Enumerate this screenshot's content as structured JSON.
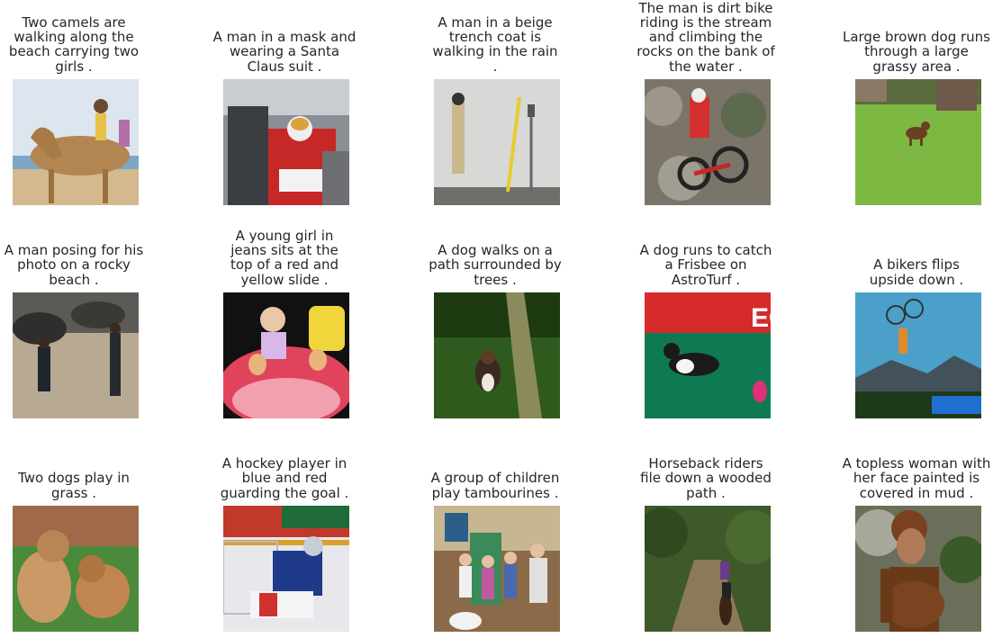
{
  "captions": [
    "Two camels are\nwalking along the\nbeach carrying two\ngirls .",
    "A man in a mask and\nwearing a Santa\nClaus suit .",
    "A man in a beige\ntrench coat is\nwalking in the rain\n.",
    "The man is dirt bike\nriding is the stream\nand climbing the\nrocks on the bank of\nthe water .",
    "Large brown dog runs\nthrough a large\ngrassy area .",
    "A man posing for his\nphoto on a rocky\nbeach .",
    "A young girl in\njeans sits at the\ntop of a red and\nyellow slide .",
    "A dog walks on a\npath surrounded by\ntrees .",
    "A dog runs to catch\na Frisbee on\nAstroTurf .",
    "A bikers flips\nupside down .",
    "Two dogs play in\ngrass .",
    "A hockey player in\nblue and red\nguarding the goal .",
    "A group of children\nplay tambourines .",
    "Horseback riders\nfile down a wooded\npath .",
    "A topless woman with\nher face painted is\ncovered in mud ."
  ],
  "photo_signs": {
    "frisbee_banner": "EGIO"
  }
}
